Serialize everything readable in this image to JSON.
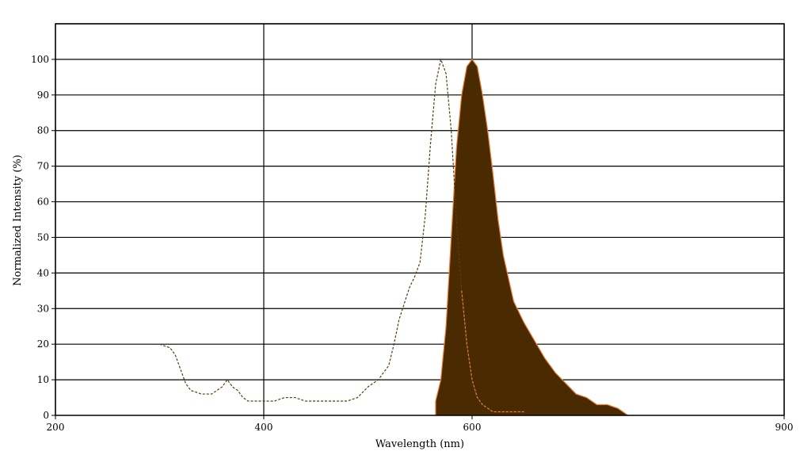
{
  "chart_data": {
    "type": "area",
    "title": "",
    "xlabel": "Wavelength (nm)",
    "ylabel": "Normalized Intensity (%)",
    "xlim": [
      200,
      900
    ],
    "ylim": [
      0,
      110
    ],
    "x_ticks": [
      200,
      400,
      600,
      900
    ],
    "y_ticks": [
      0,
      10,
      20,
      30,
      40,
      50,
      60,
      70,
      80,
      90,
      100
    ],
    "x_gridlines": [
      200,
      400,
      600,
      900
    ],
    "y_gridlines": [
      10,
      20,
      30,
      40,
      50,
      60,
      70,
      80,
      90,
      100,
      110
    ],
    "grid": true,
    "legend": "none",
    "colors": {
      "excitation_line": "#5a3a10",
      "excitation_line_tail": "#e8803a",
      "emission_fill": "#4a2a00",
      "emission_edge": "#e8803a",
      "grid": "#000000"
    },
    "series": [
      {
        "style": "dashed-line",
        "x": [
          300,
          310,
          315,
          320,
          325,
          330,
          340,
          350,
          355,
          360,
          365,
          370,
          375,
          380,
          385,
          390,
          400,
          410,
          420,
          430,
          440,
          450,
          460,
          470,
          480,
          490,
          500,
          505,
          510,
          520,
          525,
          530,
          540,
          545,
          550,
          555,
          560,
          565,
          570,
          575,
          580,
          585,
          590,
          595,
          600,
          605,
          610,
          620,
          625,
          630,
          640,
          650
        ],
        "y": [
          20,
          19,
          17,
          13,
          9,
          7,
          6,
          6,
          7,
          8,
          10,
          8,
          7,
          5,
          4,
          4,
          4,
          4,
          5,
          5,
          4,
          4,
          4,
          4,
          4,
          5,
          8,
          9,
          10,
          14,
          20,
          27,
          36,
          39,
          43,
          56,
          76,
          93,
          100,
          96,
          80,
          55,
          35,
          20,
          10,
          5,
          3,
          1,
          1,
          1,
          1,
          1
        ]
      },
      {
        "style": "filled-area",
        "x": [
          565,
          570,
          575,
          580,
          585,
          590,
          595,
          600,
          605,
          610,
          615,
          620,
          625,
          630,
          640,
          650,
          660,
          670,
          680,
          690,
          700,
          710,
          715,
          720,
          730,
          740,
          745,
          750
        ],
        "y": [
          4,
          10,
          25,
          50,
          75,
          90,
          98,
          100,
          98,
          90,
          80,
          68,
          55,
          45,
          32,
          26,
          21,
          16,
          12,
          9,
          6,
          5,
          4,
          3,
          3,
          2,
          1,
          0
        ]
      }
    ]
  }
}
